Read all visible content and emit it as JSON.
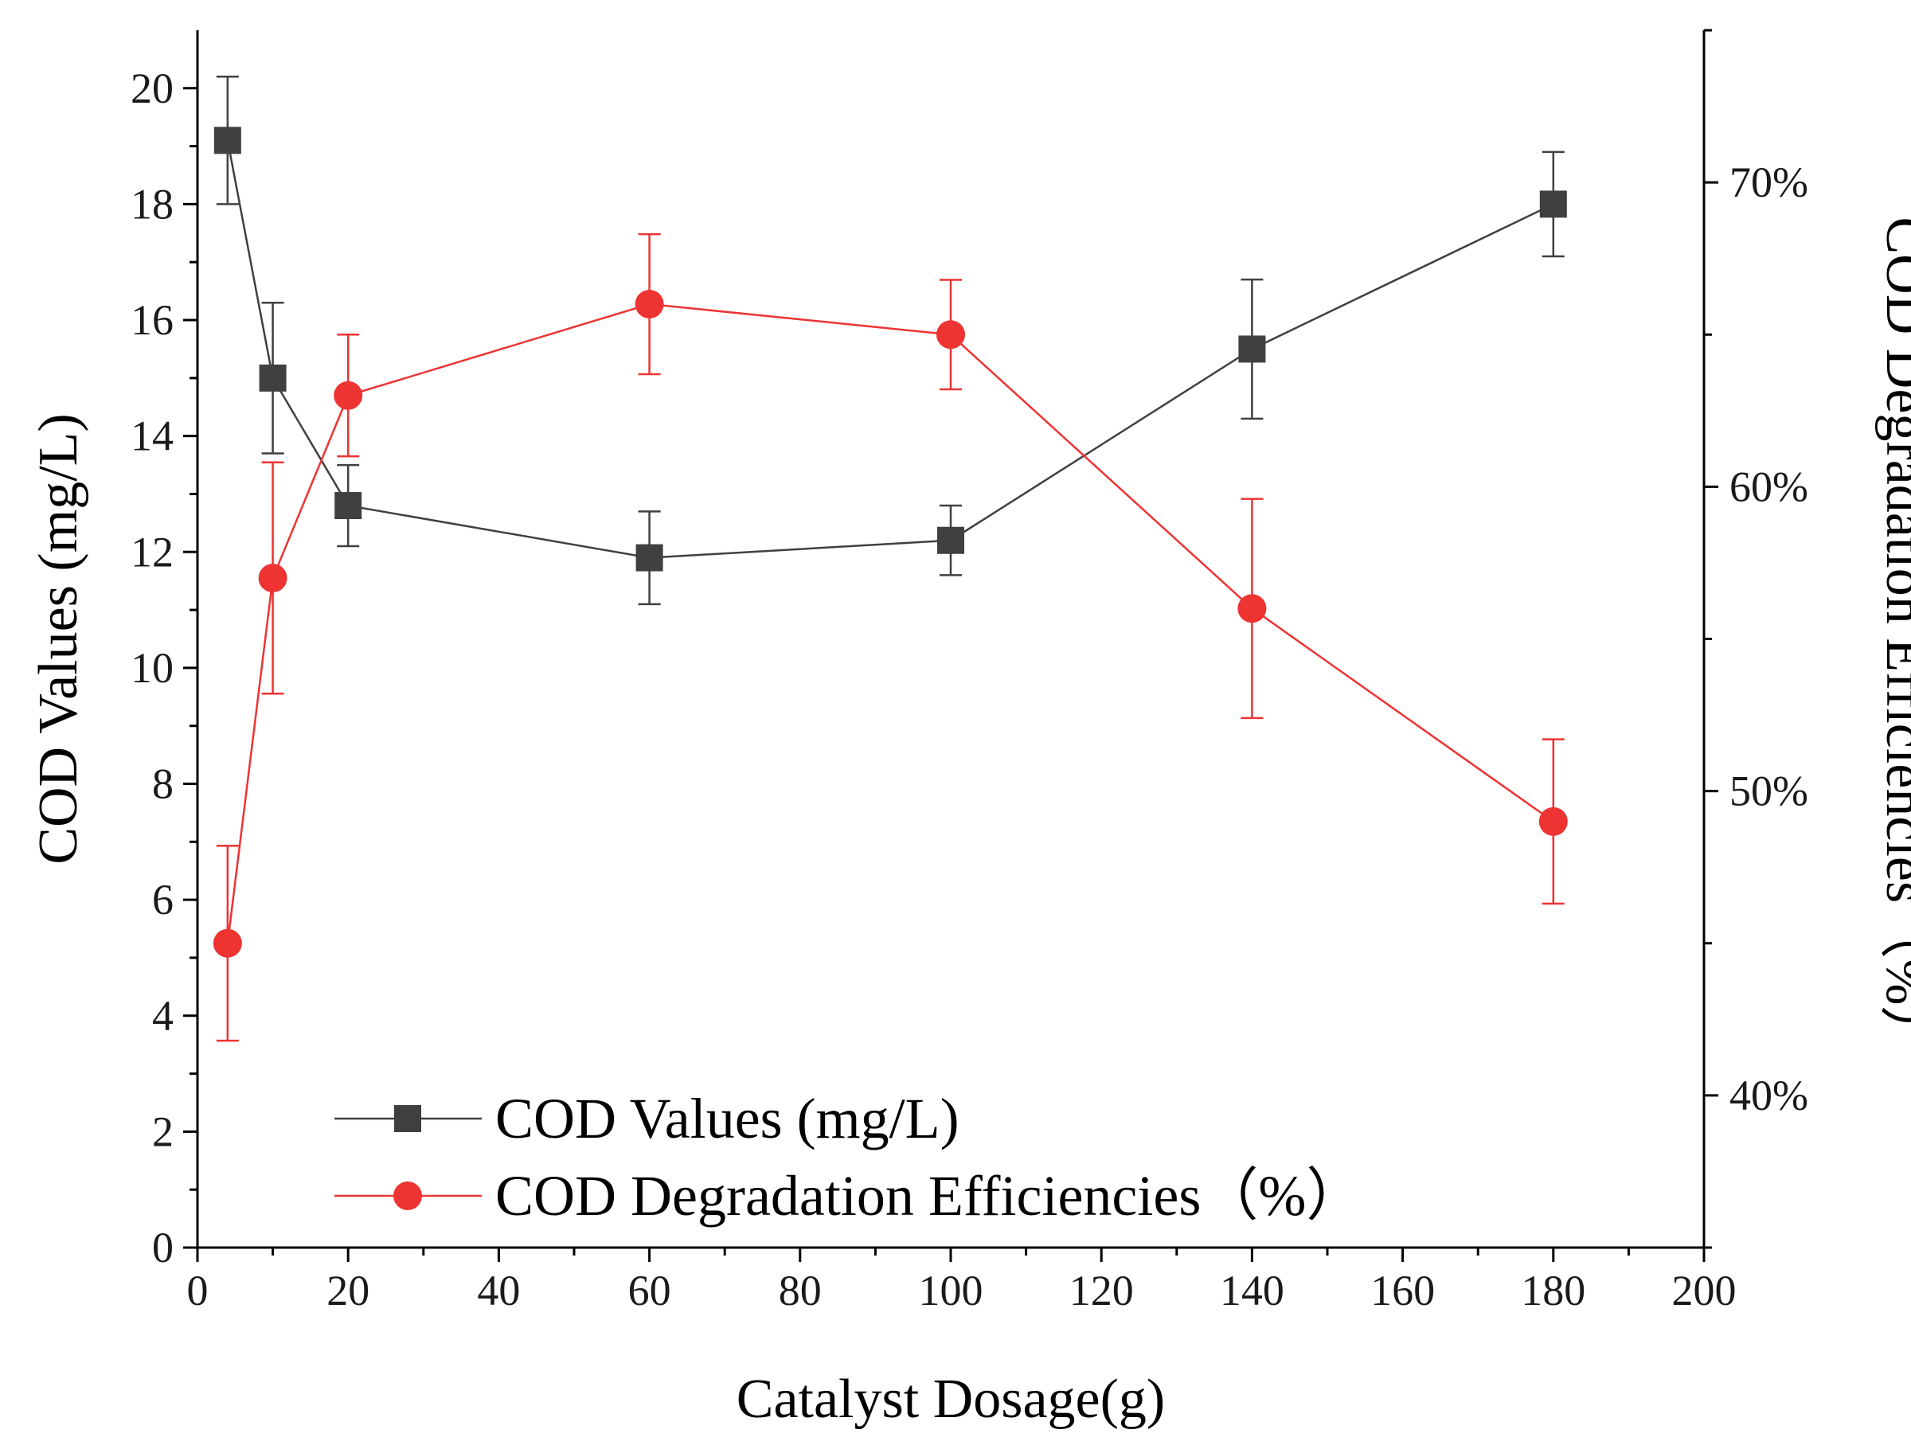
{
  "chart_data": {
    "type": "line",
    "title": "",
    "xlabel": "Catalyst Dosage(g)",
    "ylabel": "COD Values (mg/L)",
    "y2label": "COD Degradation Efficiencies（%）",
    "xlim": [
      0,
      200
    ],
    "ylim": [
      0,
      21
    ],
    "y2lim": [
      35,
      75
    ],
    "xticks": [
      0,
      20,
      40,
      60,
      80,
      100,
      120,
      140,
      160,
      180,
      200
    ],
    "xtick_labels": [
      "0",
      "20",
      "40",
      "60",
      "80",
      "100",
      "120",
      "140",
      "160",
      "180",
      "200"
    ],
    "yticks": [
      0,
      2,
      4,
      6,
      8,
      10,
      12,
      14,
      16,
      18,
      20
    ],
    "ytick_labels": [
      "0",
      "2",
      "4",
      "6",
      "8",
      "10",
      "12",
      "14",
      "16",
      "18",
      "20"
    ],
    "y2ticks": [
      40,
      50,
      60,
      70
    ],
    "y2tick_labels": [
      "40%",
      "50%",
      "60%",
      "70%"
    ],
    "grid": false,
    "legend_position": "bottom-left",
    "series": [
      {
        "name": "COD Values (mg/L)",
        "axis": "left",
        "marker": "square",
        "color": "#404040",
        "x": [
          4,
          10,
          20,
          60,
          100,
          140,
          180
        ],
        "y": [
          19.1,
          15.0,
          12.8,
          11.9,
          12.2,
          15.5,
          18.0
        ],
        "err": [
          1.1,
          1.3,
          0.7,
          0.8,
          0.6,
          1.2,
          0.9
        ]
      },
      {
        "name": "COD Degradation Efficiencies（%）",
        "axis": "right",
        "marker": "circle",
        "color": "#ee3333",
        "x": [
          4,
          10,
          20,
          60,
          100,
          140,
          180
        ],
        "y": [
          45,
          57,
          63,
          66,
          65,
          56,
          49
        ],
        "err": [
          3.2,
          3.8,
          2.0,
          2.3,
          1.8,
          3.6,
          2.7
        ]
      }
    ]
  }
}
